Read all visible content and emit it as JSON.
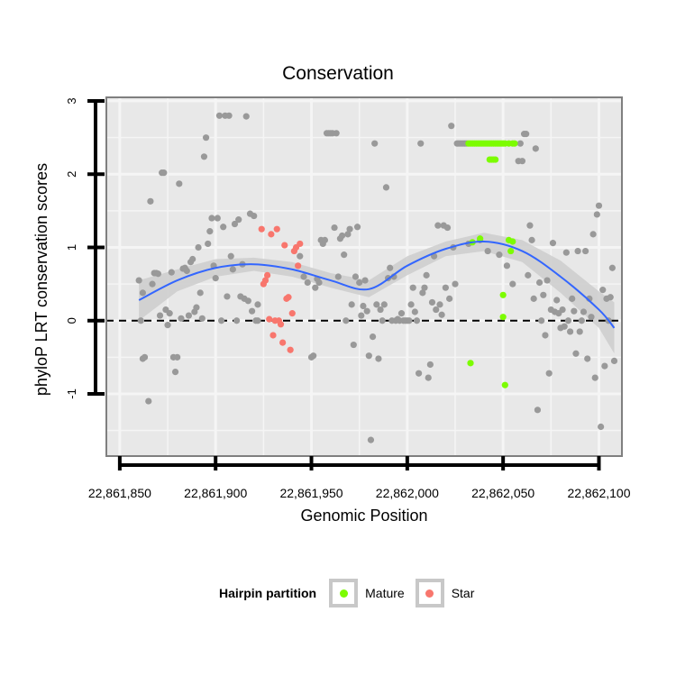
{
  "chart_data": {
    "type": "scatter",
    "title": "Conservation",
    "xlabel": "Genomic Position",
    "ylabel": "phyloP LRT conservation scores",
    "xlim": [
      22861843,
      22862112
    ],
    "ylim": [
      -1.85,
      3.05
    ],
    "x_ticks": [
      22861850,
      22861900,
      22861950,
      22862000,
      22862050,
      22862100
    ],
    "x_tick_labels": [
      "22,861,850",
      "22,861,900",
      "22,861,950",
      "22,862,000",
      "22,862,050",
      "22,862,100"
    ],
    "y_ticks": [
      -1,
      0,
      1,
      2,
      3
    ],
    "y_tick_labels": [
      "-1",
      "0",
      "1",
      "2",
      "3"
    ],
    "grid": true,
    "reference_line": {
      "y": 0,
      "style": "dashed"
    },
    "legend": {
      "title": "Hairpin partition",
      "position": "bottom",
      "entries": [
        {
          "label": "Mature",
          "color": "#7cfc00"
        },
        {
          "label": "Star",
          "color": "#f8766d"
        }
      ]
    },
    "colors": {
      "background": "#e8e8e8",
      "grid": "#f5f5f5",
      "other_points": "#999999",
      "mature": "#7cfc00",
      "star": "#f8766d",
      "smooth_line": "#3366ff",
      "smooth_band": "#cccccc"
    },
    "series": [
      {
        "name": "",
        "color": "#999999",
        "points": [
          [
            22861860,
            0.55
          ],
          [
            22861861,
            0.0
          ],
          [
            22861862,
            0.38
          ],
          [
            22861862,
            -0.52
          ],
          [
            22861863,
            -0.5
          ],
          [
            22861865,
            -1.1
          ],
          [
            22861866,
            1.63
          ],
          [
            22861867,
            0.5
          ],
          [
            22861868,
            0.65
          ],
          [
            22861869,
            0.65
          ],
          [
            22861870,
            0.64
          ],
          [
            22861871,
            0.07
          ],
          [
            22861872,
            2.02
          ],
          [
            22861873,
            2.02
          ],
          [
            22861874,
            0.15
          ],
          [
            22861875,
            -0.06
          ],
          [
            22861876,
            0.1
          ],
          [
            22861877,
            0.66
          ],
          [
            22861878,
            -0.5
          ],
          [
            22861879,
            -0.7
          ],
          [
            22861880,
            -0.5
          ],
          [
            22861881,
            1.87
          ],
          [
            22861882,
            0.03
          ],
          [
            22861883,
            0.71
          ],
          [
            22861884,
            0.72
          ],
          [
            22861885,
            0.68
          ],
          [
            22861886,
            0.07
          ],
          [
            22861887,
            0.8
          ],
          [
            22861888,
            0.84
          ],
          [
            22861889,
            0.12
          ],
          [
            22861890,
            0.18
          ],
          [
            22861891,
            1.0
          ],
          [
            22861892,
            0.38
          ],
          [
            22861893,
            0.03
          ],
          [
            22861894,
            2.24
          ],
          [
            22861895,
            2.5
          ],
          [
            22861896,
            1.05
          ],
          [
            22861897,
            1.22
          ],
          [
            22861898,
            1.4
          ],
          [
            22861899,
            0.75
          ],
          [
            22861900,
            0.58
          ],
          [
            22861901,
            1.4
          ],
          [
            22861902,
            2.8
          ],
          [
            22861903,
            0.0
          ],
          [
            22861904,
            1.28
          ],
          [
            22861905,
            2.8
          ],
          [
            22861906,
            0.33
          ],
          [
            22861907,
            2.8
          ],
          [
            22861908,
            0.88
          ],
          [
            22861909,
            0.7
          ],
          [
            22861910,
            1.32
          ],
          [
            22861911,
            0.0
          ],
          [
            22861912,
            1.38
          ],
          [
            22861913,
            0.33
          ],
          [
            22861914,
            0.77
          ],
          [
            22861915,
            0.3
          ],
          [
            22861916,
            2.79
          ],
          [
            22861917,
            0.27
          ],
          [
            22861918,
            1.46
          ],
          [
            22861919,
            0.13
          ],
          [
            22861920,
            1.43
          ],
          [
            22861921,
            0.0
          ],
          [
            22861922,
            0.22
          ],
          [
            22861922,
            0.0
          ],
          [
            22861944,
            0.88
          ],
          [
            22861946,
            0.6
          ],
          [
            22861948,
            0.52
          ],
          [
            22861950,
            -0.5
          ],
          [
            22861951,
            -0.48
          ],
          [
            22861952,
            0.45
          ],
          [
            22861953,
            0.57
          ],
          [
            22861954,
            0.52
          ],
          [
            22861955,
            1.1
          ],
          [
            22861956,
            1.05
          ],
          [
            22861957,
            1.1
          ],
          [
            22861958,
            2.56
          ],
          [
            22861959,
            2.56
          ],
          [
            22861960,
            2.56
          ],
          [
            22861961,
            2.56
          ],
          [
            22861962,
            1.27
          ],
          [
            22861963,
            2.56
          ],
          [
            22861964,
            0.6
          ],
          [
            22861965,
            1.12
          ],
          [
            22861966,
            1.16
          ],
          [
            22861967,
            0.9
          ],
          [
            22861968,
            0.0
          ],
          [
            22861969,
            1.18
          ],
          [
            22861970,
            1.25
          ],
          [
            22861971,
            0.22
          ],
          [
            22861972,
            -0.33
          ],
          [
            22861973,
            0.6
          ],
          [
            22861974,
            1.28
          ],
          [
            22861975,
            0.52
          ],
          [
            22861976,
            0.07
          ],
          [
            22861977,
            0.2
          ],
          [
            22861978,
            0.55
          ],
          [
            22861979,
            0.13
          ],
          [
            22861980,
            -0.48
          ],
          [
            22861981,
            -1.63
          ],
          [
            22861982,
            -0.22
          ],
          [
            22861983,
            2.42
          ],
          [
            22861984,
            0.22
          ],
          [
            22861985,
            -0.52
          ],
          [
            22861986,
            0.15
          ],
          [
            22861987,
            0.0
          ],
          [
            22861988,
            0.22
          ],
          [
            22861989,
            1.82
          ],
          [
            22861990,
            0.58
          ],
          [
            22861991,
            0.72
          ],
          [
            22861992,
            0.0
          ],
          [
            22861993,
            0.6
          ],
          [
            22861994,
            0.0
          ],
          [
            22861995,
            0.02
          ],
          [
            22861996,
            0.0
          ],
          [
            22861997,
            0.1
          ],
          [
            22861998,
            0.0
          ],
          [
            22861999,
            0.0
          ],
          [
            22862000,
            0.0
          ],
          [
            22862001,
            0.0
          ],
          [
            22862002,
            0.22
          ],
          [
            22862003,
            0.45
          ],
          [
            22862004,
            0.12
          ],
          [
            22862005,
            0.0
          ],
          [
            22862006,
            -0.72
          ],
          [
            22862007,
            2.42
          ],
          [
            22862008,
            0.38
          ],
          [
            22862009,
            0.45
          ],
          [
            22862010,
            0.62
          ],
          [
            22862011,
            -0.78
          ],
          [
            22862012,
            -0.6
          ],
          [
            22862013,
            0.25
          ],
          [
            22862014,
            0.88
          ],
          [
            22862015,
            0.15
          ],
          [
            22862016,
            1.3
          ],
          [
            22862017,
            0.22
          ],
          [
            22862018,
            0.08
          ],
          [
            22862019,
            1.3
          ],
          [
            22862020,
            0.45
          ],
          [
            22862021,
            1.27
          ],
          [
            22862022,
            0.3
          ],
          [
            22862023,
            2.66
          ],
          [
            22862024,
            1.0
          ],
          [
            22862025,
            0.5
          ],
          [
            22862026,
            2.42
          ],
          [
            22862027,
            2.42
          ],
          [
            22862028,
            2.42
          ],
          [
            22862029,
            2.42
          ],
          [
            22862030,
            2.42
          ],
          [
            22862031,
            2.42
          ],
          [
            22862032,
            1.05
          ],
          [
            22862038,
            1.1
          ],
          [
            22862042,
            0.95
          ],
          [
            22862048,
            0.9
          ],
          [
            22862052,
            0.75
          ],
          [
            22862055,
            0.5
          ],
          [
            22862058,
            2.18
          ],
          [
            22862059,
            2.42
          ],
          [
            22862060,
            2.18
          ],
          [
            22862061,
            2.55
          ],
          [
            22862062,
            2.55
          ],
          [
            22862063,
            0.62
          ],
          [
            22862064,
            1.3
          ],
          [
            22862065,
            1.1
          ],
          [
            22862066,
            0.3
          ],
          [
            22862067,
            2.35
          ],
          [
            22862068,
            -1.22
          ],
          [
            22862069,
            0.52
          ],
          [
            22862070,
            0.0
          ],
          [
            22862071,
            0.35
          ],
          [
            22862072,
            -0.2
          ],
          [
            22862073,
            0.55
          ],
          [
            22862074,
            -0.72
          ],
          [
            22862075,
            0.15
          ],
          [
            22862076,
            1.06
          ],
          [
            22862077,
            0.12
          ],
          [
            22862078,
            0.28
          ],
          [
            22862079,
            0.1
          ],
          [
            22862080,
            -0.1
          ],
          [
            22862081,
            0.15
          ],
          [
            22862082,
            -0.08
          ],
          [
            22862083,
            0.93
          ],
          [
            22862084,
            0.0
          ],
          [
            22862085,
            -0.15
          ],
          [
            22862086,
            0.3
          ],
          [
            22862087,
            0.13
          ],
          [
            22862088,
            -0.45
          ],
          [
            22862089,
            0.95
          ],
          [
            22862090,
            -0.15
          ],
          [
            22862091,
            0.0
          ],
          [
            22862092,
            0.12
          ],
          [
            22862093,
            0.95
          ],
          [
            22862094,
            -0.52
          ],
          [
            22862095,
            0.3
          ],
          [
            22862096,
            0.05
          ],
          [
            22862097,
            1.18
          ],
          [
            22862098,
            -0.78
          ],
          [
            22862099,
            1.45
          ],
          [
            22862100,
            1.57
          ],
          [
            22862101,
            -1.45
          ],
          [
            22862102,
            0.42
          ],
          [
            22862103,
            -0.62
          ],
          [
            22862104,
            0.3
          ],
          [
            22862105,
            0.0
          ],
          [
            22862106,
            0.32
          ],
          [
            22862107,
            0.72
          ],
          [
            22862108,
            -0.55
          ]
        ]
      },
      {
        "name": "Mature",
        "color": "#7cfc00",
        "points": [
          [
            22862032,
            2.42
          ],
          [
            22862033,
            2.42
          ],
          [
            22862034,
            2.42
          ],
          [
            22862035,
            2.42
          ],
          [
            22862036,
            2.42
          ],
          [
            22862037,
            2.42
          ],
          [
            22862038,
            2.42
          ],
          [
            22862039,
            2.42
          ],
          [
            22862040,
            2.42
          ],
          [
            22862041,
            2.42
          ],
          [
            22862042,
            2.42
          ],
          [
            22862043,
            2.42
          ],
          [
            22862044,
            2.42
          ],
          [
            22862045,
            2.42
          ],
          [
            22862046,
            2.42
          ],
          [
            22862047,
            2.42
          ],
          [
            22862048,
            2.42
          ],
          [
            22862049,
            2.42
          ],
          [
            22862050,
            2.42
          ],
          [
            22862051,
            2.42
          ],
          [
            22862053,
            2.42
          ],
          [
            22862055,
            2.42
          ],
          [
            22862056,
            2.42
          ],
          [
            22862043,
            2.2
          ],
          [
            22862044,
            2.2
          ],
          [
            22862045,
            2.2
          ],
          [
            22862046,
            2.2
          ],
          [
            22862033,
            -0.58
          ],
          [
            22862034,
            1.07
          ],
          [
            22862038,
            1.12
          ],
          [
            22862050,
            0.35
          ],
          [
            22862050,
            0.05
          ],
          [
            22862051,
            -0.88
          ],
          [
            22862053,
            1.1
          ],
          [
            22862054,
            0.95
          ],
          [
            22862055,
            1.08
          ]
        ]
      },
      {
        "name": "Star",
        "color": "#f8766d",
        "points": [
          [
            22861924,
            1.25
          ],
          [
            22861925,
            0.5
          ],
          [
            22861926,
            0.55
          ],
          [
            22861927,
            0.62
          ],
          [
            22861928,
            0.02
          ],
          [
            22861929,
            1.18
          ],
          [
            22861930,
            -0.2
          ],
          [
            22861931,
            0.0
          ],
          [
            22861932,
            1.25
          ],
          [
            22861933,
            0.0
          ],
          [
            22861934,
            -0.05
          ],
          [
            22861935,
            -0.3
          ],
          [
            22861936,
            1.03
          ],
          [
            22861937,
            0.3
          ],
          [
            22861938,
            0.32
          ],
          [
            22861939,
            -0.4
          ],
          [
            22861940,
            0.1
          ],
          [
            22861941,
            0.95
          ],
          [
            22861942,
            1.0
          ],
          [
            22861943,
            0.75
          ],
          [
            22861944,
            1.05
          ]
        ]
      }
    ],
    "smooth_fit": {
      "x": [
        22861860,
        22861880,
        22861900,
        22861920,
        22861940,
        22861960,
        22861980,
        22862000,
        22862020,
        22862040,
        22862060,
        22862080,
        22862100,
        22862108
      ],
      "y": [
        0.28,
        0.55,
        0.72,
        0.77,
        0.7,
        0.55,
        0.43,
        0.75,
        0.98,
        1.08,
        0.95,
        0.6,
        0.15,
        -0.1
      ],
      "lower": [
        0.0,
        0.4,
        0.6,
        0.68,
        0.6,
        0.45,
        0.32,
        0.62,
        0.88,
        0.95,
        0.8,
        0.38,
        -0.1,
        -0.45
      ],
      "upper": [
        0.55,
        0.7,
        0.84,
        0.86,
        0.8,
        0.65,
        0.55,
        0.88,
        1.08,
        1.2,
        1.1,
        0.82,
        0.4,
        0.25
      ]
    }
  }
}
